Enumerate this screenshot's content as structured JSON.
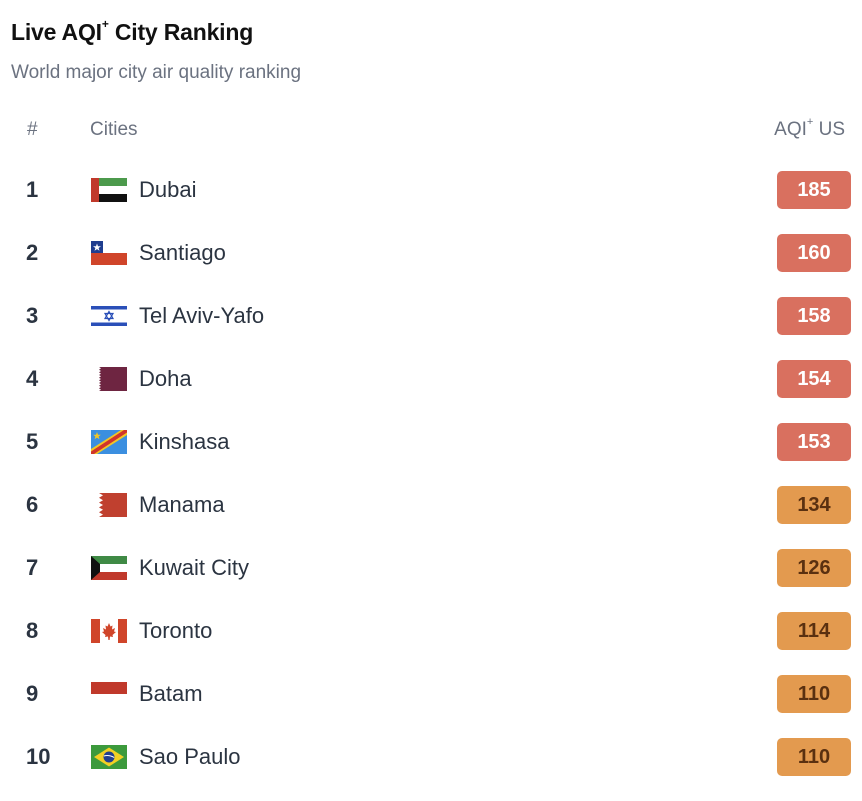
{
  "header": {
    "title": "Live AQI",
    "title_sup": "+",
    "title_suffix": "City Ranking",
    "subtitle": "World major city air quality ranking"
  },
  "columns": {
    "rank": "#",
    "city": "Cities",
    "aqi": "AQI",
    "aqi_sup": "+",
    "aqi_suffix": "US"
  },
  "status_colors": {
    "unhealthy": {
      "bg": "#d9705f",
      "text": "#ffffff"
    },
    "sensitive": {
      "bg": "#e39a4f",
      "text": "#5a3010"
    }
  },
  "rows": [
    {
      "rank": "1",
      "city": "Dubai",
      "aqi": "185",
      "level": "unhealthy",
      "flag": "uae-flag-icon"
    },
    {
      "rank": "2",
      "city": "Santiago",
      "aqi": "160",
      "level": "unhealthy",
      "flag": "chile-flag-icon"
    },
    {
      "rank": "3",
      "city": "Tel Aviv-Yafo",
      "aqi": "158",
      "level": "unhealthy",
      "flag": "israel-flag-icon"
    },
    {
      "rank": "4",
      "city": "Doha",
      "aqi": "154",
      "level": "unhealthy",
      "flag": "qatar-flag-icon"
    },
    {
      "rank": "5",
      "city": "Kinshasa",
      "aqi": "153",
      "level": "unhealthy",
      "flag": "dr-congo-flag-icon"
    },
    {
      "rank": "6",
      "city": "Manama",
      "aqi": "134",
      "level": "sensitive",
      "flag": "bahrain-flag-icon"
    },
    {
      "rank": "7",
      "city": "Kuwait City",
      "aqi": "126",
      "level": "sensitive",
      "flag": "kuwait-flag-icon"
    },
    {
      "rank": "8",
      "city": "Toronto",
      "aqi": "114",
      "level": "sensitive",
      "flag": "canada-flag-icon"
    },
    {
      "rank": "9",
      "city": "Batam",
      "aqi": "110",
      "level": "sensitive",
      "flag": "indonesia-flag-icon"
    },
    {
      "rank": "10",
      "city": "Sao Paulo",
      "aqi": "110",
      "level": "sensitive",
      "flag": "brazil-flag-icon"
    }
  ]
}
